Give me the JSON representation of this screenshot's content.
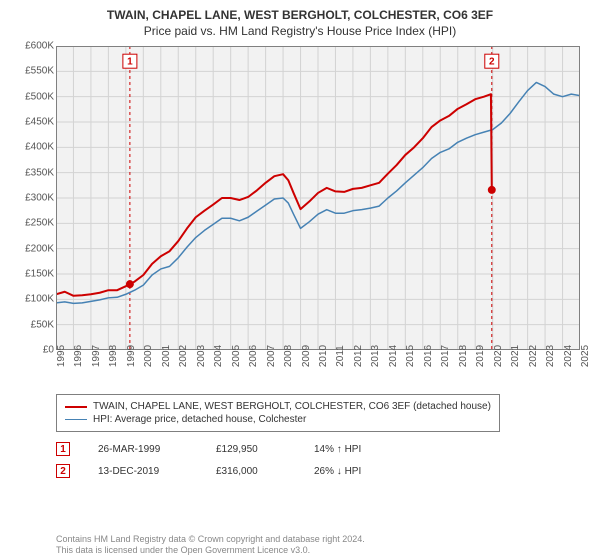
{
  "title": "TWAIN, CHAPEL LANE, WEST BERGHOLT, COLCHESTER, CO6 3EF",
  "subtitle": "Price paid vs. HM Land Registry's House Price Index (HPI)",
  "chart": {
    "type": "line",
    "background_color": "#ffffff",
    "plot_bg_color": "#f2f2f2",
    "border_color": "#808080",
    "grid_color": "#d3d3d3",
    "y_axis": {
      "lim": [
        0,
        600000
      ],
      "tick_step": 50000,
      "labels": [
        "£0",
        "£50K",
        "£100K",
        "£150K",
        "£200K",
        "£250K",
        "£300K",
        "£350K",
        "£400K",
        "£450K",
        "£500K",
        "£550K",
        "£600K"
      ],
      "label_fontsize": 10,
      "label_color": "#555555"
    },
    "x_axis": {
      "lim": [
        1995,
        2025
      ],
      "tick_step": 1,
      "labels": [
        "1995",
        "1996",
        "1997",
        "1998",
        "1999",
        "2000",
        "2001",
        "2002",
        "2003",
        "2004",
        "2005",
        "2006",
        "2007",
        "2008",
        "2009",
        "2010",
        "2011",
        "2012",
        "2013",
        "2014",
        "2015",
        "2016",
        "2017",
        "2018",
        "2019",
        "2020",
        "2021",
        "2022",
        "2023",
        "2024",
        "2025"
      ],
      "label_fontsize": 10,
      "label_color": "#555555",
      "rotation": -90
    },
    "series": [
      {
        "name": "TWAIN, CHAPEL LANE, WEST BERGHOLT, COLCHESTER, CO6 3EF (detached house)",
        "color": "#cd0000",
        "line_width": 2,
        "data": [
          [
            1995,
            110000
          ],
          [
            1995.5,
            115000
          ],
          [
            1996,
            107000
          ],
          [
            1996.5,
            108000
          ],
          [
            1997,
            110000
          ],
          [
            1997.5,
            113000
          ],
          [
            1998,
            118000
          ],
          [
            1998.5,
            118000
          ],
          [
            1999,
            126000
          ],
          [
            1999.23,
            129950
          ],
          [
            1999.5,
            135000
          ],
          [
            2000,
            148000
          ],
          [
            2000.5,
            170000
          ],
          [
            2001,
            185000
          ],
          [
            2001.5,
            195000
          ],
          [
            2002,
            215000
          ],
          [
            2002.5,
            240000
          ],
          [
            2003,
            262000
          ],
          [
            2003.5,
            275000
          ],
          [
            2004,
            287000
          ],
          [
            2004.5,
            300000
          ],
          [
            2005,
            300000
          ],
          [
            2005.5,
            296000
          ],
          [
            2006,
            302000
          ],
          [
            2006.5,
            315000
          ],
          [
            2007,
            330000
          ],
          [
            2007.5,
            343000
          ],
          [
            2008,
            347000
          ],
          [
            2008.3,
            335000
          ],
          [
            2008.6,
            310000
          ],
          [
            2009,
            278000
          ],
          [
            2009.5,
            293000
          ],
          [
            2010,
            310000
          ],
          [
            2010.5,
            320000
          ],
          [
            2011,
            313000
          ],
          [
            2011.5,
            312000
          ],
          [
            2012,
            318000
          ],
          [
            2012.5,
            320000
          ],
          [
            2013,
            325000
          ],
          [
            2013.5,
            330000
          ],
          [
            2014,
            348000
          ],
          [
            2014.5,
            365000
          ],
          [
            2015,
            385000
          ],
          [
            2015.5,
            400000
          ],
          [
            2016,
            418000
          ],
          [
            2016.5,
            440000
          ],
          [
            2017,
            453000
          ],
          [
            2017.5,
            462000
          ],
          [
            2018,
            476000
          ],
          [
            2018.5,
            485000
          ],
          [
            2019,
            495000
          ],
          [
            2019.5,
            500000
          ],
          [
            2019.9,
            505000
          ],
          [
            2019.95,
            316000
          ]
        ]
      },
      {
        "name": "HPI: Average price, detached house, Colchester",
        "color": "#4682b4",
        "line_width": 1.5,
        "data": [
          [
            1995,
            93000
          ],
          [
            1995.5,
            95000
          ],
          [
            1996,
            92000
          ],
          [
            1996.5,
            93000
          ],
          [
            1997,
            96000
          ],
          [
            1997.5,
            99000
          ],
          [
            1998,
            103000
          ],
          [
            1998.5,
            104000
          ],
          [
            1999,
            110000
          ],
          [
            1999.5,
            118000
          ],
          [
            2000,
            128000
          ],
          [
            2000.5,
            148000
          ],
          [
            2001,
            160000
          ],
          [
            2001.5,
            165000
          ],
          [
            2002,
            182000
          ],
          [
            2002.5,
            203000
          ],
          [
            2003,
            222000
          ],
          [
            2003.5,
            236000
          ],
          [
            2004,
            248000
          ],
          [
            2004.5,
            260000
          ],
          [
            2005,
            260000
          ],
          [
            2005.5,
            255000
          ],
          [
            2006,
            262000
          ],
          [
            2006.5,
            274000
          ],
          [
            2007,
            286000
          ],
          [
            2007.5,
            298000
          ],
          [
            2008,
            300000
          ],
          [
            2008.3,
            290000
          ],
          [
            2008.6,
            268000
          ],
          [
            2009,
            240000
          ],
          [
            2009.5,
            253000
          ],
          [
            2010,
            268000
          ],
          [
            2010.5,
            277000
          ],
          [
            2011,
            270000
          ],
          [
            2011.5,
            270000
          ],
          [
            2012,
            275000
          ],
          [
            2012.5,
            277000
          ],
          [
            2013,
            280000
          ],
          [
            2013.5,
            284000
          ],
          [
            2014,
            300000
          ],
          [
            2014.5,
            314000
          ],
          [
            2015,
            330000
          ],
          [
            2015.5,
            345000
          ],
          [
            2016,
            360000
          ],
          [
            2016.5,
            378000
          ],
          [
            2017,
            390000
          ],
          [
            2017.5,
            397000
          ],
          [
            2018,
            410000
          ],
          [
            2018.5,
            418000
          ],
          [
            2019,
            425000
          ],
          [
            2019.5,
            430000
          ],
          [
            2020,
            435000
          ],
          [
            2020.5,
            448000
          ],
          [
            2021,
            467000
          ],
          [
            2021.5,
            490000
          ],
          [
            2022,
            512000
          ],
          [
            2022.5,
            528000
          ],
          [
            2023,
            520000
          ],
          [
            2023.5,
            505000
          ],
          [
            2024,
            500000
          ],
          [
            2024.5,
            505000
          ],
          [
            2025,
            502000
          ]
        ]
      }
    ],
    "markers": [
      {
        "index": 1,
        "x": 1999.23,
        "y": 129950,
        "color": "#cd0000",
        "badge_y": 570000,
        "line_color": "#cd0000"
      },
      {
        "index": 2,
        "x": 2019.95,
        "y": 316000,
        "color": "#cd0000",
        "badge_y": 570000,
        "line_color": "#cd0000"
      }
    ],
    "badge_style": {
      "border_color": "#cd0000",
      "text_color": "#cd0000",
      "bg_color": "#ffffff",
      "fontsize": 10
    }
  },
  "legend": {
    "border_color": "#7f7f7f",
    "fontsize": 10,
    "items": [
      {
        "color": "#cd0000",
        "width": 2,
        "text": "TWAIN, CHAPEL LANE, WEST BERGHOLT, COLCHESTER, CO6 3EF (detached house)"
      },
      {
        "color": "#4682b4",
        "width": 1.5,
        "text": "HPI: Average price, detached house, Colchester"
      }
    ]
  },
  "annotations": [
    {
      "badge": "1",
      "date": "26-MAR-1999",
      "price": "£129,950",
      "diff": "14% ↑ HPI"
    },
    {
      "badge": "2",
      "date": "13-DEC-2019",
      "price": "£316,000",
      "diff": "26% ↓ HPI"
    }
  ],
  "license_line1": "Contains HM Land Registry data © Crown copyright and database right 2024.",
  "license_line2": "This data is licensed under the Open Government Licence v3.0."
}
